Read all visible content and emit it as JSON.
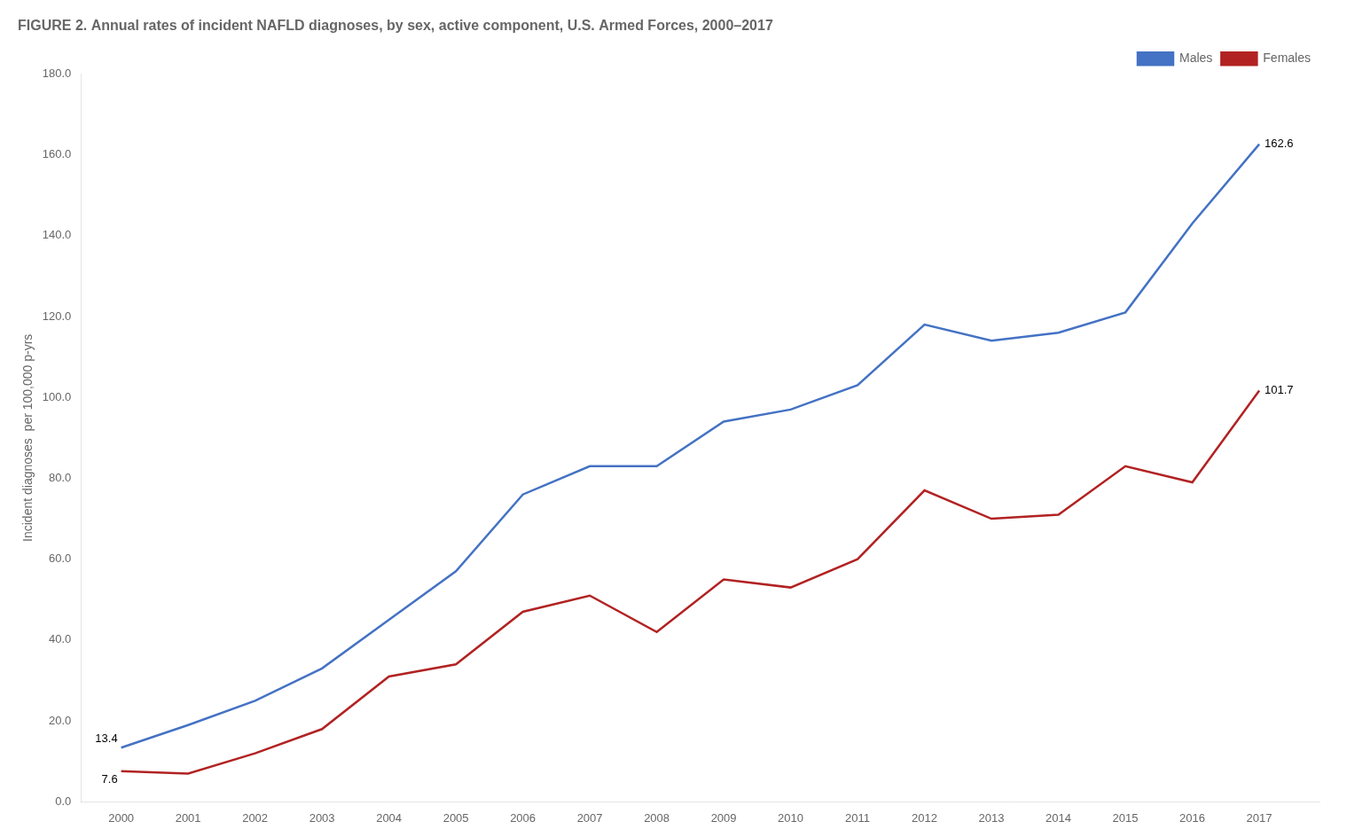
{
  "chart_data": {
    "type": "line",
    "title": "FIGURE 2. Annual rates of incident NAFLD diagnoses, by sex, active component, U.S. Armed Forces, 2000–2017",
    "y_label": "Incident diagnoses  per 100,000 p-yrs",
    "x": [
      2000,
      2001,
      2002,
      2003,
      2004,
      2005,
      2006,
      2007,
      2008,
      2009,
      2010,
      2011,
      2012,
      2013,
      2014,
      2015,
      2016,
      2017
    ],
    "series": [
      {
        "name": "Males",
        "color": "#4472C4",
        "values": [
          13.4,
          19.0,
          25.0,
          33.0,
          45.0,
          57.0,
          76.0,
          83.0,
          83.0,
          94.0,
          97.0,
          103.0,
          118.0,
          114.0,
          116.0,
          121.0,
          143.0,
          162.6
        ]
      },
      {
        "name": "Females",
        "color": "#B22222",
        "values": [
          7.6,
          7.0,
          12.0,
          18.0,
          31.0,
          34.0,
          47.0,
          51.0,
          42.0,
          55.0,
          53.0,
          60.0,
          77.0,
          70.0,
          71.0,
          83.0,
          79.0,
          101.7
        ]
      }
    ],
    "annotations": [
      {
        "text": "13.4",
        "x": 2000,
        "y": 13.4
      },
      {
        "text": "7.6",
        "x": 2000,
        "y": 7.6
      },
      {
        "text": "162.6",
        "x": 2017,
        "y": 162.6
      },
      {
        "text": "101.7",
        "x": 2017,
        "y": 101.7
      }
    ],
    "xlim": [
      1999.4,
      2017.9
    ],
    "xticks": [
      2000,
      2001,
      2002,
      2003,
      2004,
      2005,
      2006,
      2007,
      2008,
      2009,
      2010,
      2011,
      2012,
      2013,
      2014,
      2015,
      2016,
      2017
    ],
    "ylim": [
      0.0,
      180.0
    ],
    "yticks": [
      {
        "value": 0.0,
        "label": "0.0"
      },
      {
        "value": 20.0,
        "label": "20.0"
      },
      {
        "value": 40.0,
        "label": "40.0"
      },
      {
        "value": 60.0,
        "label": "60.0"
      },
      {
        "value": 80.0,
        "label": "80.0"
      },
      {
        "value": 100.0,
        "label": "100.0"
      },
      {
        "value": 120.0,
        "label": "120.0"
      },
      {
        "value": 140.0,
        "label": "140.0"
      },
      {
        "value": 160.0,
        "label": "160.0"
      },
      {
        "value": 180.0,
        "label": "180.0"
      }
    ],
    "grid": false,
    "legend": "upper right"
  }
}
